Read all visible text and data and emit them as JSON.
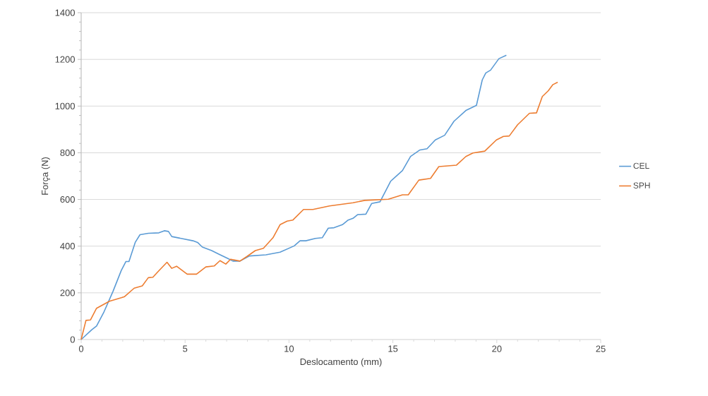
{
  "chart_data": {
    "type": "line",
    "xlabel": "Deslocamento (mm)",
    "ylabel": "Força (N)",
    "xlim": [
      0,
      25
    ],
    "ylim": [
      0,
      1400
    ],
    "xticks": [
      0,
      5,
      10,
      15,
      20,
      25
    ],
    "yticks": [
      0,
      200,
      400,
      600,
      800,
      1000,
      1200,
      1400
    ],
    "grid": "y",
    "legend": "right",
    "marker": "none",
    "line_style": "solid",
    "series": [
      {
        "name": "CEL",
        "color": "#5b9bd5",
        "x": [
          0,
          0.51,
          0.74,
          1.08,
          1.53,
          1.93,
          2.15,
          2.3,
          2.6,
          2.83,
          3.23,
          3.74,
          4.0,
          4.2,
          4.36,
          4.7,
          5.38,
          5.6,
          5.83,
          6.28,
          6.62,
          7.08,
          7.3,
          7.64,
          8.1,
          8.89,
          9.57,
          10.25,
          10.53,
          10.81,
          11.27,
          11.6,
          11.89,
          12.17,
          12.57,
          12.85,
          13.08,
          13.3,
          13.7,
          13.98,
          14.38,
          14.89,
          15.46,
          15.85,
          16.3,
          16.64,
          17.04,
          17.49,
          17.94,
          18.51,
          19.02,
          19.3,
          19.47,
          19.7,
          20.1,
          20.46
        ],
        "values": [
          0,
          42,
          58,
          115,
          206,
          296,
          334,
          334,
          416,
          449,
          455,
          457,
          466,
          463,
          441,
          435,
          423,
          416,
          396,
          381,
          366,
          346,
          336,
          336,
          358,
          363,
          374,
          401,
          423,
          423,
          433,
          436,
          477,
          479,
          492,
          512,
          519,
          535,
          537,
          583,
          590,
          678,
          724,
          784,
          812,
          817,
          855,
          875,
          935,
          981,
          1003,
          1112,
          1142,
          1154,
          1203,
          1218
        ]
      },
      {
        "name": "SPH",
        "color": "#ed7d31",
        "x": [
          0,
          0.23,
          0.45,
          0.74,
          1.36,
          1.93,
          2.09,
          2.55,
          2.94,
          3.23,
          3.45,
          3.74,
          4.13,
          4.36,
          4.59,
          5.1,
          5.55,
          6.0,
          6.4,
          6.68,
          6.96,
          7.19,
          7.64,
          7.98,
          8.38,
          8.77,
          9.23,
          9.57,
          9.91,
          10.19,
          10.7,
          11.15,
          11.95,
          13.08,
          13.64,
          14.78,
          15.46,
          15.74,
          16.25,
          16.81,
          17.21,
          18.06,
          18.51,
          18.85,
          19.42,
          19.98,
          20.32,
          20.6,
          21.0,
          21.57,
          21.91,
          22.19,
          22.48,
          22.7,
          22.93
        ],
        "values": [
          0,
          82,
          84,
          134,
          164,
          179,
          184,
          220,
          230,
          265,
          267,
          295,
          331,
          305,
          314,
          280,
          280,
          311,
          315,
          338,
          323,
          344,
          336,
          356,
          381,
          391,
          436,
          492,
          507,
          512,
          557,
          557,
          572,
          586,
          596,
          601,
          620,
          620,
          683,
          690,
          741,
          747,
          784,
          799,
          807,
          855,
          870,
          872,
          920,
          969,
          971,
          1041,
          1066,
          1092,
          1102
        ]
      }
    ]
  }
}
